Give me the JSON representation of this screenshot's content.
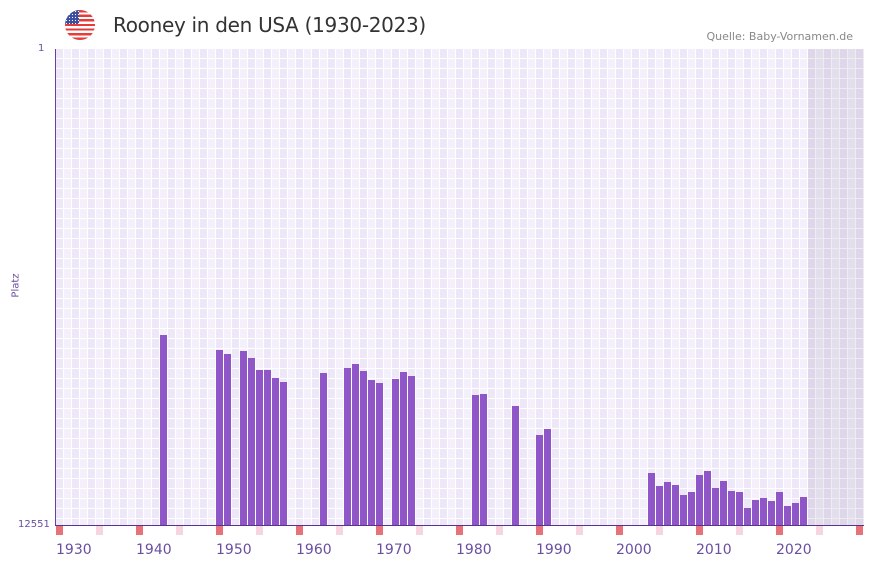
{
  "header": {
    "title": "Rooney in den USA (1930-2023)",
    "source": "Quelle: Baby-Vornamen.de",
    "flag_icon": "usa-flag-icon"
  },
  "colors": {
    "bar": "#8e56c6",
    "decade_marker": "#e8727a",
    "half_decade_marker": "#f5d6e0",
    "axis": "#6a3fa0"
  },
  "chart_data": {
    "type": "bar",
    "title": "Rooney in den USA (1930-2023)",
    "xlabel": "",
    "ylabel": "Platz",
    "xlim": [
      1930,
      2030
    ],
    "ylim": [
      12551,
      1
    ],
    "y_tick_labels": [
      "1",
      "12551"
    ],
    "x_tick_labels": [
      "1930",
      "1940",
      "1950",
      "1960",
      "1970",
      "1980",
      "1990",
      "2000",
      "2010",
      "2020"
    ],
    "future_shaded_from": 2024,
    "points": [
      {
        "year": 1943,
        "rank": 7542
      },
      {
        "year": 1950,
        "rank": 7938
      },
      {
        "year": 1951,
        "rank": 8042
      },
      {
        "year": 1953,
        "rank": 7963
      },
      {
        "year": 1954,
        "rank": 8148
      },
      {
        "year": 1955,
        "rank": 8464
      },
      {
        "year": 1956,
        "rank": 8464
      },
      {
        "year": 1957,
        "rank": 8675
      },
      {
        "year": 1958,
        "rank": 8781
      },
      {
        "year": 1963,
        "rank": 8544
      },
      {
        "year": 1966,
        "rank": 8412
      },
      {
        "year": 1967,
        "rank": 8306
      },
      {
        "year": 1968,
        "rank": 8491
      },
      {
        "year": 1969,
        "rank": 8728
      },
      {
        "year": 1970,
        "rank": 8807
      },
      {
        "year": 1972,
        "rank": 8702
      },
      {
        "year": 1973,
        "rank": 8517
      },
      {
        "year": 1974,
        "rank": 8623
      },
      {
        "year": 1982,
        "rank": 9124
      },
      {
        "year": 1983,
        "rank": 9097
      },
      {
        "year": 1987,
        "rank": 9414
      },
      {
        "year": 1990,
        "rank": 10178
      },
      {
        "year": 1991,
        "rank": 10020
      },
      {
        "year": 2004,
        "rank": 11180
      },
      {
        "year": 2005,
        "rank": 11523
      },
      {
        "year": 2006,
        "rank": 11417
      },
      {
        "year": 2007,
        "rank": 11496
      },
      {
        "year": 2008,
        "rank": 11760
      },
      {
        "year": 2009,
        "rank": 11681
      },
      {
        "year": 2010,
        "rank": 11233
      },
      {
        "year": 2011,
        "rank": 11127
      },
      {
        "year": 2012,
        "rank": 11575
      },
      {
        "year": 2013,
        "rank": 11391
      },
      {
        "year": 2014,
        "rank": 11655
      },
      {
        "year": 2015,
        "rank": 11681
      },
      {
        "year": 2016,
        "rank": 12103
      },
      {
        "year": 2017,
        "rank": 11892
      },
      {
        "year": 2018,
        "rank": 11839
      },
      {
        "year": 2019,
        "rank": 11918
      },
      {
        "year": 2020,
        "rank": 11681
      },
      {
        "year": 2021,
        "rank": 12050
      },
      {
        "year": 2022,
        "rank": 11971
      },
      {
        "year": 2023,
        "rank": 11813
      }
    ]
  }
}
